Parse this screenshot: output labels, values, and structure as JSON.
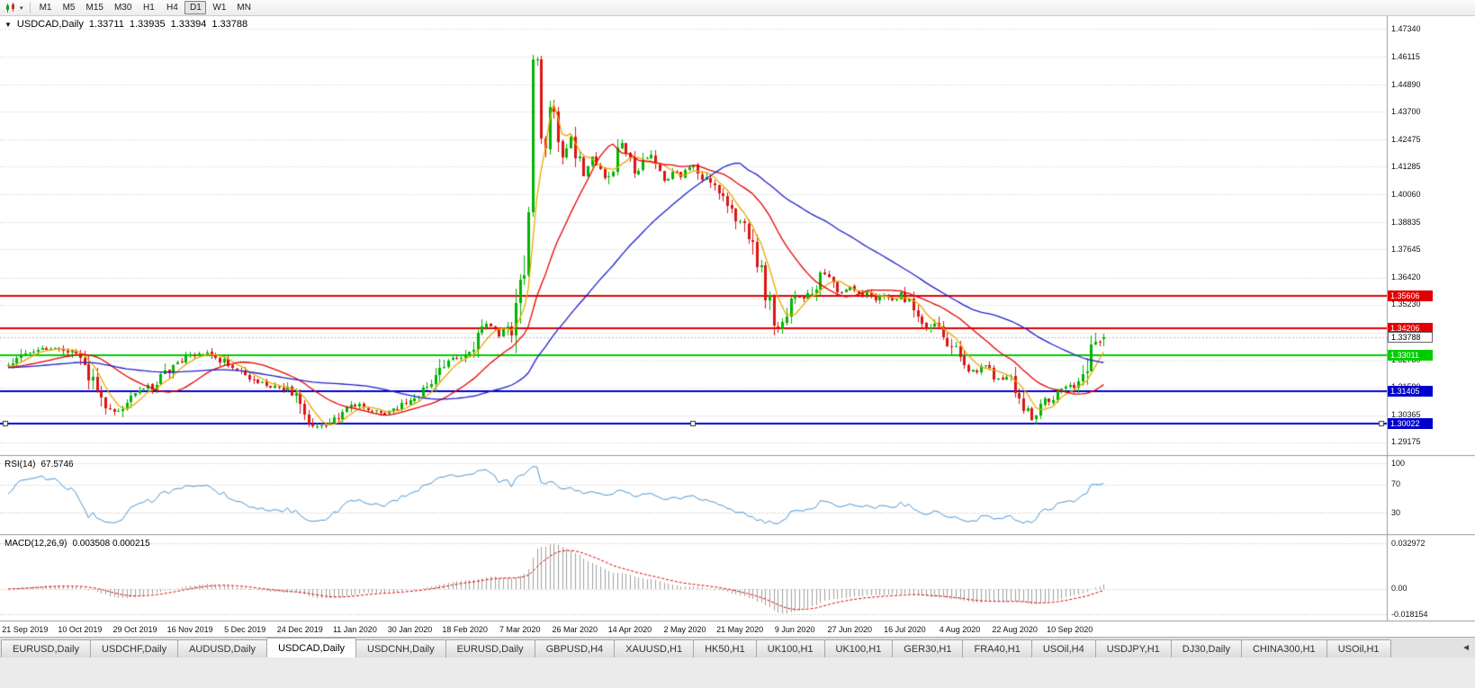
{
  "toolbar": {
    "timeframes": [
      "M1",
      "M5",
      "M15",
      "M30",
      "H1",
      "H4",
      "D1",
      "W1",
      "MN"
    ],
    "active_timeframe": "D1",
    "dropdown_icon": "▾"
  },
  "chart_header": {
    "collapse_icon": "▼",
    "symbol": "USDCAD,Daily",
    "open": "1.33711",
    "high": "1.33935",
    "low": "1.33394",
    "close": "1.33788"
  },
  "price_axis": {
    "top_price": 1.47893,
    "bottom_price": 1.2862,
    "ticks": [
      "1.47340",
      "1.46115",
      "1.44890",
      "1.43700",
      "1.42475",
      "1.41285",
      "1.40060",
      "1.38835",
      "1.37645",
      "1.36420",
      "1.35230",
      "1.34005",
      "1.32780",
      "1.31590",
      "1.30365",
      "1.29175"
    ]
  },
  "price_lines": [
    {
      "label": "1.35606",
      "value": 1.35606,
      "color": "#e00000",
      "text_color": "#ffffff",
      "type": "resistance"
    },
    {
      "label": "1.34206",
      "value": 1.34206,
      "color": "#e00000",
      "text_color": "#ffffff",
      "type": "resistance"
    },
    {
      "label": "1.33788",
      "value": 1.33788,
      "color": "#ffffff",
      "text_color": "#000000",
      "type": "last-price"
    },
    {
      "label": "1.33011",
      "value": 1.33011,
      "color": "#00cd00",
      "text_color": "#ffffff",
      "type": "support"
    },
    {
      "label": "1.31405",
      "value": 1.31405,
      "color": "#0000cd",
      "text_color": "#ffffff",
      "type": "support"
    },
    {
      "label": "1.30022",
      "value": 1.30022,
      "color": "#0000cd",
      "text_color": "#ffffff",
      "type": "support",
      "selected": true
    }
  ],
  "rsi_panel": {
    "label": "RSI(14)",
    "value": "67.5746",
    "period": 14,
    "levels": [
      100,
      70,
      30
    ],
    "tick_labels": [
      "100",
      "70",
      "30"
    ],
    "range_top": 109,
    "range_bottom": -0.5,
    "line_color": "#4a96d2"
  },
  "macd_panel": {
    "label": "MACD(12,26,9)",
    "values": "0.003508 0.000215",
    "fast": 12,
    "slow": 26,
    "signal": 9,
    "tick_labels": [
      "0.032972",
      "0.00",
      "-0.018154"
    ],
    "tick_values": [
      0.032972,
      0,
      -0.018154
    ],
    "range_top": 0.03815,
    "range_bottom": -0.02265,
    "histogram_color": "#a0a0a0",
    "signal_color": "#e00000"
  },
  "date_axis": [
    "21 Sep 2019",
    "10 Oct 2019",
    "29 Oct 2019",
    "16 Nov 2019",
    "5 Dec 2019",
    "24 Dec 2019",
    "11 Jan 2020",
    "30 Jan 2020",
    "18 Feb 2020",
    "7 Mar 2020",
    "26 Mar 2020",
    "14 Apr 2020",
    "2 May 2020",
    "21 May 2020",
    "9 Jun 2020",
    "27 Jun 2020",
    "16 Jul 2020",
    "4 Aug 2020",
    "22 Aug 2020",
    "10 Sep 2020"
  ],
  "tabs": {
    "items": [
      "EURUSD,Daily",
      "USDCHF,Daily",
      "AUDUSD,Daily",
      "USDCAD,Daily",
      "USDCNH,Daily",
      "EURUSD,Daily",
      "GBPUSD,H4",
      "XAUUSD,H1",
      "HK50,H1",
      "UK100,H1",
      "UK100,H1",
      "GER30,H1",
      "FRA40,H1",
      "USOil,H4",
      "USDJPY,H1",
      "DJ30,Daily",
      "CHINA300,H1",
      "USOil,H1"
    ],
    "active_index": 3,
    "scroll_left_icon": "◄"
  },
  "chart_data": {
    "type": "candlestick",
    "symbol": "USDCAD",
    "timeframe": "Daily",
    "num_candles": 260,
    "seed": 9,
    "bull_color": "#00b400",
    "bear_color": "#dc1414",
    "last_candle": {
      "o": 1.33711,
      "h": 1.33935,
      "l": 1.33394,
      "c": 1.33788
    },
    "moving_averages": [
      {
        "period": 6,
        "color": "#eaa800",
        "name": "fast-ma"
      },
      {
        "period": 20,
        "color": "#e80000",
        "name": "medium-ma"
      },
      {
        "period": 50,
        "color": "#2020cc",
        "name": "slow-ma"
      }
    ],
    "close_keypoints": [
      [
        0.0,
        1.3245
      ],
      [
        0.012,
        1.329
      ],
      [
        0.03,
        1.333
      ],
      [
        0.048,
        1.3335
      ],
      [
        0.06,
        1.33
      ],
      [
        0.072,
        1.323
      ],
      [
        0.085,
        1.312
      ],
      [
        0.095,
        1.305
      ],
      [
        0.105,
        1.308
      ],
      [
        0.118,
        1.314
      ],
      [
        0.132,
        1.3165
      ],
      [
        0.148,
        1.324
      ],
      [
        0.163,
        1.329
      ],
      [
        0.18,
        1.331
      ],
      [
        0.195,
        1.328
      ],
      [
        0.21,
        1.323
      ],
      [
        0.225,
        1.318
      ],
      [
        0.24,
        1.317
      ],
      [
        0.255,
        1.315
      ],
      [
        0.266,
        1.309
      ],
      [
        0.275,
        1.301
      ],
      [
        0.285,
        1.2985
      ],
      [
        0.295,
        1.301
      ],
      [
        0.308,
        1.3065
      ],
      [
        0.32,
        1.308
      ],
      [
        0.333,
        1.3055
      ],
      [
        0.345,
        1.304
      ],
      [
        0.357,
        1.3075
      ],
      [
        0.37,
        1.311
      ],
      [
        0.383,
        1.315
      ],
      [
        0.393,
        1.323
      ],
      [
        0.402,
        1.3295
      ],
      [
        0.412,
        1.329
      ],
      [
        0.422,
        1.332
      ],
      [
        0.43,
        1.338
      ],
      [
        0.438,
        1.3445
      ],
      [
        0.448,
        1.339
      ],
      [
        0.455,
        1.343
      ],
      [
        0.461,
        1.3415
      ],
      [
        0.466,
        1.356
      ],
      [
        0.471,
        1.37
      ],
      [
        0.4755,
        1.396
      ],
      [
        0.479,
        1.458
      ],
      [
        0.482,
        1.463
      ],
      [
        0.485,
        1.438
      ],
      [
        0.488,
        1.415
      ],
      [
        0.492,
        1.432
      ],
      [
        0.496,
        1.443
      ],
      [
        0.5,
        1.428
      ],
      [
        0.505,
        1.413
      ],
      [
        0.51,
        1.423
      ],
      [
        0.514,
        1.427
      ],
      [
        0.519,
        1.416
      ],
      [
        0.526,
        1.409
      ],
      [
        0.533,
        1.417
      ],
      [
        0.54,
        1.411
      ],
      [
        0.547,
        1.407
      ],
      [
        0.554,
        1.415
      ],
      [
        0.56,
        1.424
      ],
      [
        0.566,
        1.419
      ],
      [
        0.572,
        1.409
      ],
      [
        0.578,
        1.414
      ],
      [
        0.585,
        1.418
      ],
      [
        0.592,
        1.411
      ],
      [
        0.6,
        1.406
      ],
      [
        0.608,
        1.411
      ],
      [
        0.615,
        1.409
      ],
      [
        0.625,
        1.415
      ],
      [
        0.633,
        1.408
      ],
      [
        0.641,
        1.404
      ],
      [
        0.65,
        1.402
      ],
      [
        0.66,
        1.395
      ],
      [
        0.67,
        1.387
      ],
      [
        0.68,
        1.378
      ],
      [
        0.69,
        1.362
      ],
      [
        0.698,
        1.348
      ],
      [
        0.704,
        1.3395
      ],
      [
        0.71,
        1.349
      ],
      [
        0.718,
        1.356
      ],
      [
        0.726,
        1.354
      ],
      [
        0.734,
        1.358
      ],
      [
        0.742,
        1.365
      ],
      [
        0.748,
        1.366
      ],
      [
        0.755,
        1.361
      ],
      [
        0.762,
        1.357
      ],
      [
        0.77,
        1.36
      ],
      [
        0.778,
        1.356
      ],
      [
        0.785,
        1.358
      ],
      [
        0.792,
        1.3545
      ],
      [
        0.8,
        1.356
      ],
      [
        0.808,
        1.354
      ],
      [
        0.815,
        1.357
      ],
      [
        0.822,
        1.353
      ],
      [
        0.83,
        1.346
      ],
      [
        0.838,
        1.3415
      ],
      [
        0.845,
        1.345
      ],
      [
        0.852,
        1.339
      ],
      [
        0.86,
        1.334
      ],
      [
        0.868,
        1.3305
      ],
      [
        0.875,
        1.3255
      ],
      [
        0.882,
        1.3215
      ],
      [
        0.89,
        1.327
      ],
      [
        0.897,
        1.3225
      ],
      [
        0.905,
        1.3185
      ],
      [
        0.912,
        1.322
      ],
      [
        0.92,
        1.316
      ],
      [
        0.928,
        1.307
      ],
      [
        0.934,
        1.301
      ],
      [
        0.94,
        1.306
      ],
      [
        0.947,
        1.312
      ],
      [
        0.953,
        1.309
      ],
      [
        0.96,
        1.315
      ],
      [
        0.967,
        1.317
      ],
      [
        0.974,
        1.315
      ],
      [
        0.98,
        1.32
      ],
      [
        0.986,
        1.328
      ],
      [
        0.992,
        1.336
      ],
      [
        1.0,
        1.33788
      ]
    ]
  }
}
